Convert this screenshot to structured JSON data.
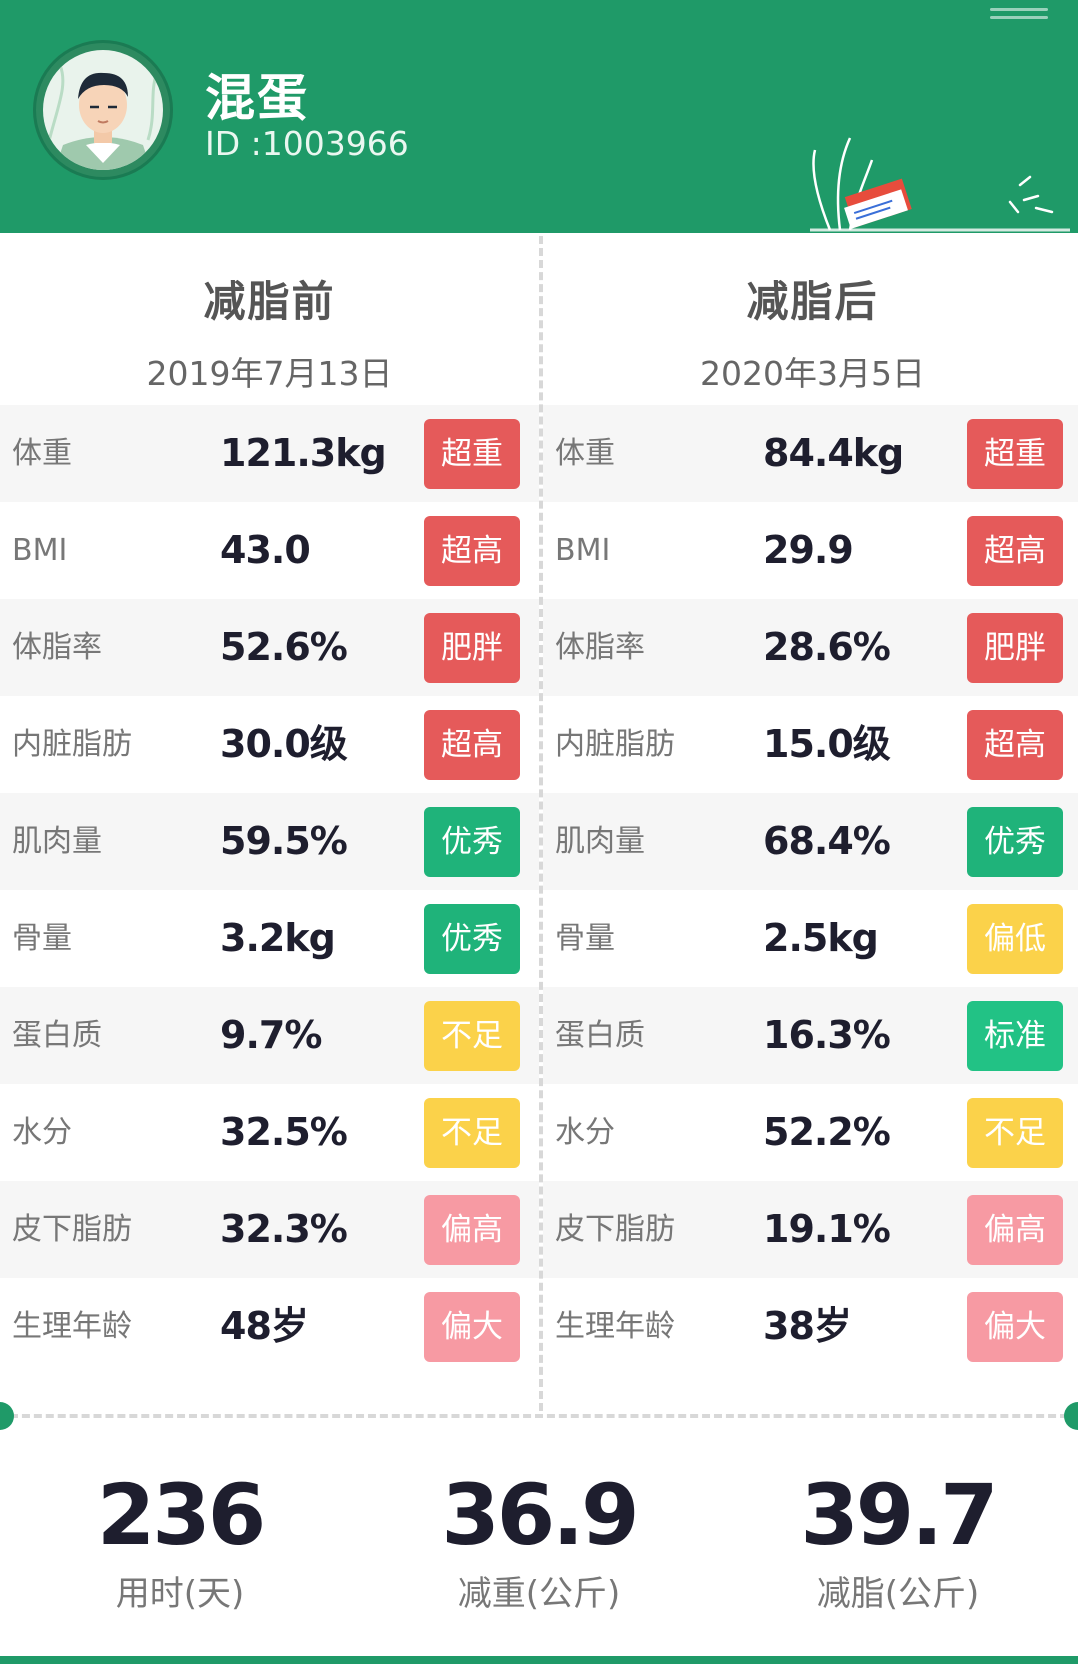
{
  "user": {
    "name": "混蛋",
    "id_text": "ID :1003966"
  },
  "before": {
    "title": "减脂前",
    "date": "2019年7月13日",
    "rows": [
      {
        "label": "体重",
        "value": "121.3kg",
        "status": "超重",
        "color": "#e55a5a"
      },
      {
        "label": "BMI",
        "value": "43.0",
        "status": "超高",
        "color": "#e55a5a"
      },
      {
        "label": "体脂率",
        "value": "52.6%",
        "status": "肥胖",
        "color": "#e55a5a"
      },
      {
        "label": "内脏脂肪",
        "value": "30.0级",
        "status": "超高",
        "color": "#e55a5a"
      },
      {
        "label": "肌肉量",
        "value": "59.5%",
        "status": "优秀",
        "color": "#1fb37a"
      },
      {
        "label": "骨量",
        "value": "3.2kg",
        "status": "优秀",
        "color": "#1fb37a"
      },
      {
        "label": "蛋白质",
        "value": "9.7%",
        "status": "不足",
        "color": "#fbd24a"
      },
      {
        "label": "水分",
        "value": "32.5%",
        "status": "不足",
        "color": "#fbd24a"
      },
      {
        "label": "皮下脂肪",
        "value": "32.3%",
        "status": "偏高",
        "color": "#f79aa3"
      },
      {
        "label": "生理年龄",
        "value": "48岁",
        "status": "偏大",
        "color": "#f79aa3"
      }
    ]
  },
  "after": {
    "title": "减脂后",
    "date": "2020年3月5日",
    "rows": [
      {
        "label": "体重",
        "value": "84.4kg",
        "status": "超重",
        "color": "#e55a5a"
      },
      {
        "label": "BMI",
        "value": "29.9",
        "status": "超高",
        "color": "#e55a5a"
      },
      {
        "label": "体脂率",
        "value": "28.6%",
        "status": "肥胖",
        "color": "#e55a5a"
      },
      {
        "label": "内脏脂肪",
        "value": "15.0级",
        "status": "超高",
        "color": "#e55a5a"
      },
      {
        "label": "肌肉量",
        "value": "68.4%",
        "status": "优秀",
        "color": "#1fb37a"
      },
      {
        "label": "骨量",
        "value": "2.5kg",
        "status": "偏低",
        "color": "#fbd24a"
      },
      {
        "label": "蛋白质",
        "value": "16.3%",
        "status": "标准",
        "color": "#22c285"
      },
      {
        "label": "水分",
        "value": "52.2%",
        "status": "不足",
        "color": "#fbd24a"
      },
      {
        "label": "皮下脂肪",
        "value": "19.1%",
        "status": "偏高",
        "color": "#f79aa3"
      },
      {
        "label": "生理年龄",
        "value": "38岁",
        "status": "偏大",
        "color": "#f79aa3"
      }
    ]
  },
  "summary": [
    {
      "value": "236",
      "label": "用时(天)"
    },
    {
      "value": "36.9",
      "label": "减重(公斤)"
    },
    {
      "value": "39.7",
      "label": "减脂(公斤)"
    }
  ],
  "colors": {
    "brand": "#1f9a68"
  },
  "icons": {
    "avatar": "user-avatar-icon",
    "menu": "menu-icon",
    "decoration": "plant-book-illustration"
  }
}
